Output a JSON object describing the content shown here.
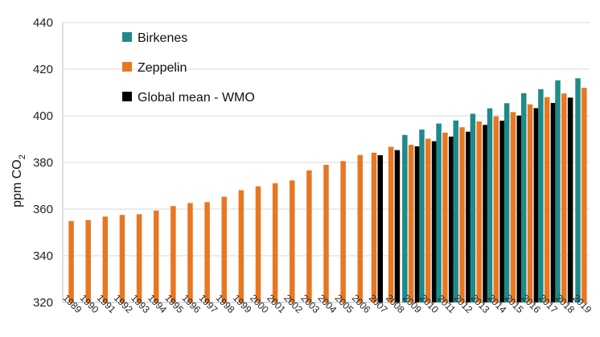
{
  "chart_data": {
    "type": "bar",
    "title": "",
    "ylabel": "ppm CO2",
    "ylabel_main": "ppm CO",
    "ylabel_sub": "2",
    "xlabel": "",
    "ylim": [
      320,
      440
    ],
    "yticks": [
      320,
      340,
      360,
      380,
      400,
      420,
      440
    ],
    "legend_position": "top-left",
    "categories": [
      "1989",
      "1990",
      "1991",
      "1992",
      "1993",
      "1994",
      "1995",
      "1996",
      "1997",
      "1998",
      "1999",
      "2000",
      "2001",
      "2002",
      "2003",
      "2004",
      "2005",
      "2006",
      "2007",
      "2008",
      "2009",
      "2010",
      "2011",
      "2012",
      "2013",
      "2014",
      "2015",
      "2016",
      "2017",
      "2018",
      "2019"
    ],
    "series": [
      {
        "name": "Birkenes",
        "color": "#1f8a8a",
        "values": [
          null,
          null,
          null,
          null,
          null,
          null,
          null,
          null,
          null,
          null,
          null,
          null,
          null,
          null,
          null,
          null,
          null,
          null,
          null,
          null,
          391.8,
          394.1,
          396.7,
          398.0,
          400.9,
          403.2,
          405.4,
          409.7,
          411.4,
          415.2,
          416.1
        ]
      },
      {
        "name": "Zeppelin",
        "color": "#e87722",
        "values": [
          354.9,
          355.3,
          356.8,
          357.5,
          357.8,
          359.4,
          361.3,
          362.6,
          363.0,
          365.3,
          368.1,
          369.8,
          371.1,
          372.3,
          376.6,
          379.0,
          380.6,
          383.2,
          384.2,
          386.7,
          387.6,
          390.2,
          392.8,
          395.1,
          397.6,
          399.8,
          401.6,
          404.9,
          408.0,
          409.6,
          412.0
        ]
      },
      {
        "name": "Global mean - WMO",
        "color": "#000000",
        "values": [
          null,
          null,
          null,
          null,
          null,
          null,
          null,
          null,
          null,
          null,
          null,
          null,
          null,
          null,
          null,
          null,
          null,
          null,
          383.1,
          385.3,
          386.9,
          389.1,
          391.1,
          393.2,
          396.1,
          397.9,
          400.1,
          403.3,
          405.5,
          407.8,
          null
        ]
      }
    ]
  }
}
